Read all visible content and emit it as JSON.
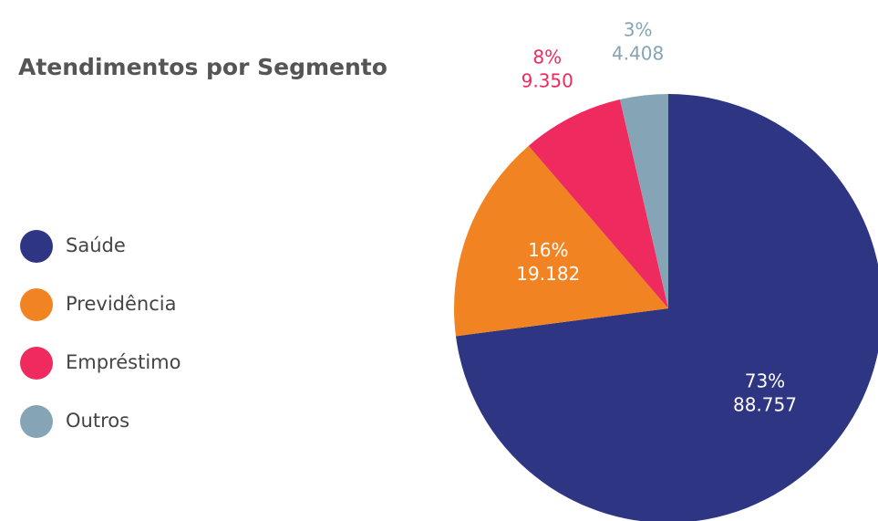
{
  "chart_data": {
    "type": "pie",
    "title": "Atendimentos por Segmento",
    "categories": [
      "Saúde",
      "Previdência",
      "Empréstimo",
      "Outros"
    ],
    "values": [
      88757,
      19182,
      9350,
      4408
    ],
    "value_labels": [
      "88.757",
      "19.182",
      "9.350",
      "4.408"
    ],
    "percent_labels": [
      "73%",
      "16%",
      "8%",
      "3%"
    ],
    "colors": [
      "#2e3684",
      "#f28322",
      "#ee2a5e",
      "#85a5b6"
    ],
    "legend": "left"
  }
}
